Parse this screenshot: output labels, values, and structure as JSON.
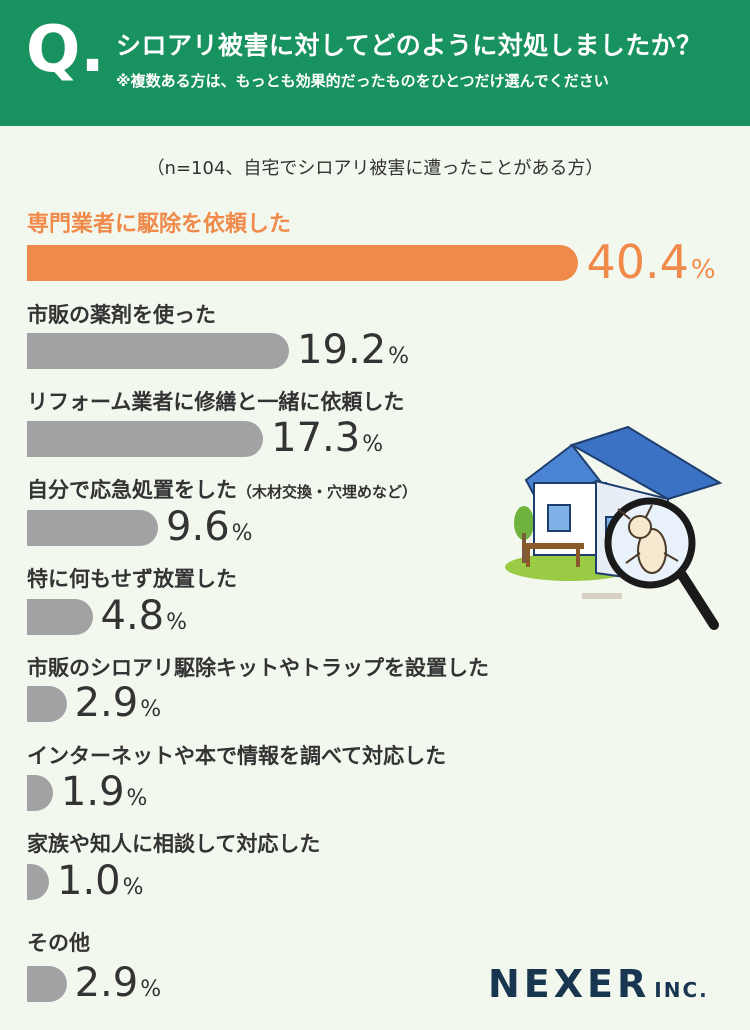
{
  "header": {
    "q_mark": "Q.",
    "title": "シロアリ被害に対してどのように対処しましたか？",
    "note": "※複数ある方は、もっとも効果的だったものをひとつだけ選んでください"
  },
  "sample_note": "（n=104、自宅でシロアリ被害に遭ったことがある方）",
  "colors": {
    "header_bg": "#18925e",
    "highlight": "#f08a4b",
    "bar_gray": "#a2a2a5",
    "page_bg": "#f3f8ee",
    "brand": "#183650"
  },
  "chart_data": {
    "type": "bar",
    "orientation": "horizontal",
    "unit": "%",
    "categories": [
      "専門業者に駆除を依頼した",
      "市販の薬剤を使った",
      "リフォーム業者に修繕と一緒に依頼した",
      "自分で応急処置をした",
      "特に何もせず放置した",
      "市販のシロアリ駆除キットやトラップを設置した",
      "インターネットや本で情報を調べて対応した",
      "家族や知人に相談して対応した",
      "その他"
    ],
    "category_notes": [
      "",
      "",
      "",
      "（木材交換・穴埋めなど）",
      "",
      "",
      "",
      "",
      ""
    ],
    "values": [
      40.4,
      19.2,
      17.3,
      9.6,
      4.8,
      2.9,
      1.9,
      1.0,
      2.9
    ],
    "value_labels": [
      "40.4",
      "19.2",
      "17.3",
      "9.6",
      "4.8",
      "2.9",
      "1.9",
      "1.0",
      "2.9"
    ]
  },
  "brand": {
    "name": "NEXER",
    "suffix": "INC."
  }
}
